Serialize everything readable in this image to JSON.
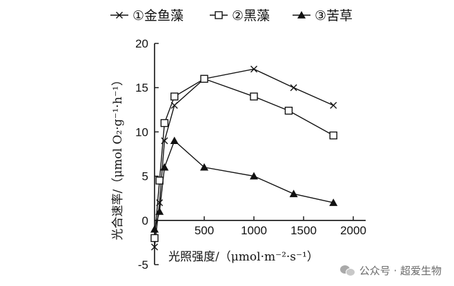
{
  "chart_data": {
    "type": "line",
    "title": "",
    "xlabel": "光照强度/（μmol·m⁻²·s⁻¹）",
    "ylabel": "光合速率/（μmol O₂·g⁻¹·h⁻¹）",
    "xlim": [
      0,
      2000
    ],
    "ylim": [
      -5,
      20
    ],
    "x_ticks": [
      500,
      1000,
      1500,
      2000
    ],
    "x_tick_labels": [
      "500",
      "1000",
      "1500",
      "2000"
    ],
    "y_ticks": [
      -5,
      0,
      5,
      10,
      15,
      20
    ],
    "y_tick_labels": [
      "-5",
      "0",
      "5",
      "10",
      "15",
      "20"
    ],
    "legend_position": "top",
    "grid": false,
    "series": [
      {
        "name": "①金鱼藻",
        "marker": "x",
        "x": [
          0,
          50,
          100,
          200,
          500,
          1000,
          1400,
          1800
        ],
        "y": [
          -3,
          2,
          9,
          13,
          16,
          17.1,
          15,
          13
        ]
      },
      {
        "name": "②黑藻",
        "marker": "square",
        "x": [
          0,
          50,
          100,
          200,
          500,
          1000,
          1350,
          1800
        ],
        "y": [
          -2,
          4.5,
          11,
          14,
          16,
          14,
          12.4,
          9.6
        ]
      },
      {
        "name": "③苦草",
        "marker": "triangle",
        "x": [
          0,
          50,
          100,
          200,
          500,
          1000,
          1400,
          1800
        ],
        "y": [
          -1,
          1,
          6,
          9,
          6,
          5,
          3,
          2
        ]
      }
    ]
  },
  "watermark": {
    "text": "公众号 · 超爱生物"
  }
}
